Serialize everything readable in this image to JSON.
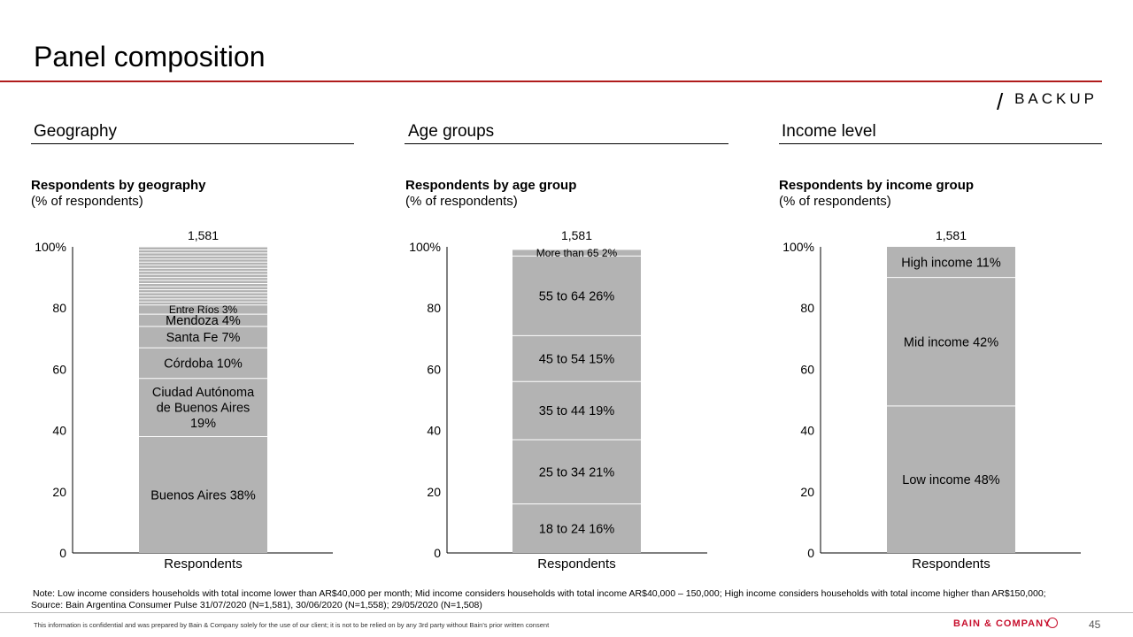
{
  "header": {
    "title": "Panel composition",
    "tag": "BACKUP"
  },
  "panels": [
    {
      "heading": "Geography",
      "chart_title": "Respondents by geography",
      "chart_units": "(% of respondents)"
    },
    {
      "heading": "Age groups",
      "chart_title": "Respondents by age group",
      "chart_units": "(% of respondents)"
    },
    {
      "heading": "Income level",
      "chart_title": "Respondents by income group",
      "chart_units": "(% of respondents)"
    }
  ],
  "chart_data": [
    {
      "type": "bar",
      "stacked": true,
      "title": "Respondents by geography",
      "ylabel": "(% of respondents)",
      "categories": [
        "Respondents"
      ],
      "total_label": "1,581",
      "ylim": [
        0,
        100
      ],
      "yticks": [
        "0",
        "20",
        "40",
        "60",
        "80",
        "100%"
      ],
      "series": [
        {
          "name": "Buenos Aires",
          "value": 38,
          "label": "Buenos Aires 38%"
        },
        {
          "name": "Ciudad Autónoma de Buenos Aires",
          "value": 19,
          "label": "Ciudad Autónoma\nde Buenos Aires\n19%"
        },
        {
          "name": "Córdoba",
          "value": 10,
          "label": "Córdoba 10%"
        },
        {
          "name": "Santa Fe",
          "value": 7,
          "label": "Santa Fe 7%"
        },
        {
          "name": "Mendoza",
          "value": 4,
          "label": "Mendoza 4%"
        },
        {
          "name": "Entre Ríos",
          "value": 3,
          "label": "Entre Ríos 3%"
        }
      ],
      "remainder_slices": 19
    },
    {
      "type": "bar",
      "stacked": true,
      "title": "Respondents by age group",
      "ylabel": "(% of respondents)",
      "categories": [
        "Respondents"
      ],
      "total_label": "1,581",
      "ylim": [
        0,
        100
      ],
      "yticks": [
        "0",
        "20",
        "40",
        "60",
        "80",
        "100%"
      ],
      "series": [
        {
          "name": "18 to 24",
          "value": 16,
          "label": "18 to 24 16%"
        },
        {
          "name": "25 to 34",
          "value": 21,
          "label": "25 to 34 21%"
        },
        {
          "name": "35 to 44",
          "value": 19,
          "label": "35 to 44 19%"
        },
        {
          "name": "45 to 54",
          "value": 15,
          "label": "45 to 54 15%"
        },
        {
          "name": "55 to 64",
          "value": 26,
          "label": "55 to 64 26%"
        },
        {
          "name": "More than 65",
          "value": 2,
          "label": "More than 65 2%"
        }
      ]
    },
    {
      "type": "bar",
      "stacked": true,
      "title": "Respondents by income group",
      "ylabel": "(% of respondents)",
      "categories": [
        "Respondents"
      ],
      "total_label": "1,581",
      "ylim": [
        0,
        100
      ],
      "yticks": [
        "0",
        "20",
        "40",
        "60",
        "80",
        "100%"
      ],
      "series": [
        {
          "name": "Low income",
          "value": 48,
          "label": "Low income 48%"
        },
        {
          "name": "Mid income",
          "value": 42,
          "label": "Mid income 42%"
        },
        {
          "name": "High income",
          "value": 11,
          "label": "High income 11%"
        }
      ]
    }
  ],
  "footer": {
    "note": "Note: Low income considers households with total income lower than AR$40,000 per month; Mid income considers households with total income AR$40,000 – 150,000; High income considers households with total income higher than AR$150,000;",
    "source": "Source: Bain Argentina Consumer Pulse 31/07/2020 (N=1,581), 30/06/2020 (N=1,558); 29/05/2020 (N=1,508)",
    "confidential": "This information is confidential and was prepared by Bain & Company solely for the use of our client; it is not to be relied on by any 3rd party without Bain's prior written consent",
    "brand": "BAIN & COMPANY",
    "page_number": "45"
  },
  "colors": {
    "bar": "#b3b3b3",
    "separator": "#ffffff",
    "accent": "#b01c1c",
    "brand": "#c8102e"
  }
}
